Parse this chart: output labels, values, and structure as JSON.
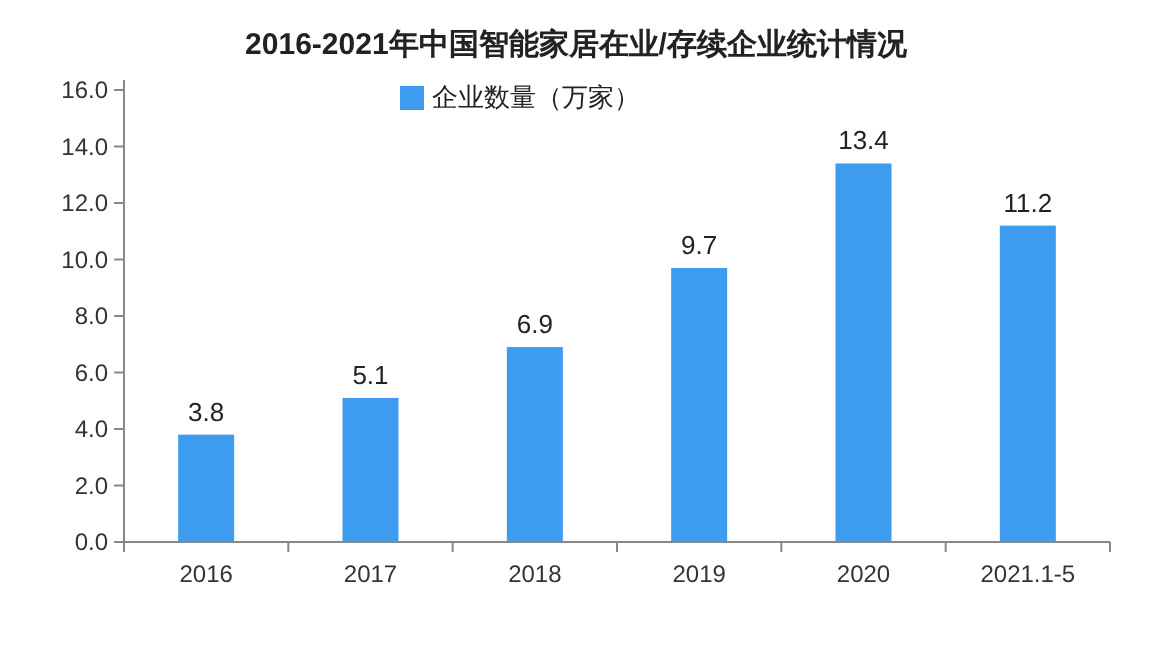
{
  "chart_data": {
    "type": "bar",
    "title": "2016-2021年中国智能家居在业/存续企业统计情况",
    "categories": [
      "2016",
      "2017",
      "2018",
      "2019",
      "2020",
      "2021.1-5"
    ],
    "series": [
      {
        "name": "企业数量（万家）",
        "color": "#3d9bf0",
        "values": [
          3.8,
          5.1,
          6.9,
          9.7,
          13.4,
          11.2
        ]
      }
    ],
    "ylim": [
      0,
      16
    ],
    "yticks": [
      {
        "value": 0,
        "label": "0.0"
      },
      {
        "value": 2,
        "label": "2.0"
      },
      {
        "value": 4,
        "label": "4.0"
      },
      {
        "value": 6,
        "label": "6.0"
      },
      {
        "value": 8,
        "label": "8.0"
      },
      {
        "value": 10,
        "label": "10.0"
      },
      {
        "value": 12,
        "label": "12.0"
      },
      {
        "value": 14,
        "label": "14.0"
      },
      {
        "value": 16,
        "label": "16.0"
      }
    ],
    "data_labels": true,
    "legend": "top"
  }
}
